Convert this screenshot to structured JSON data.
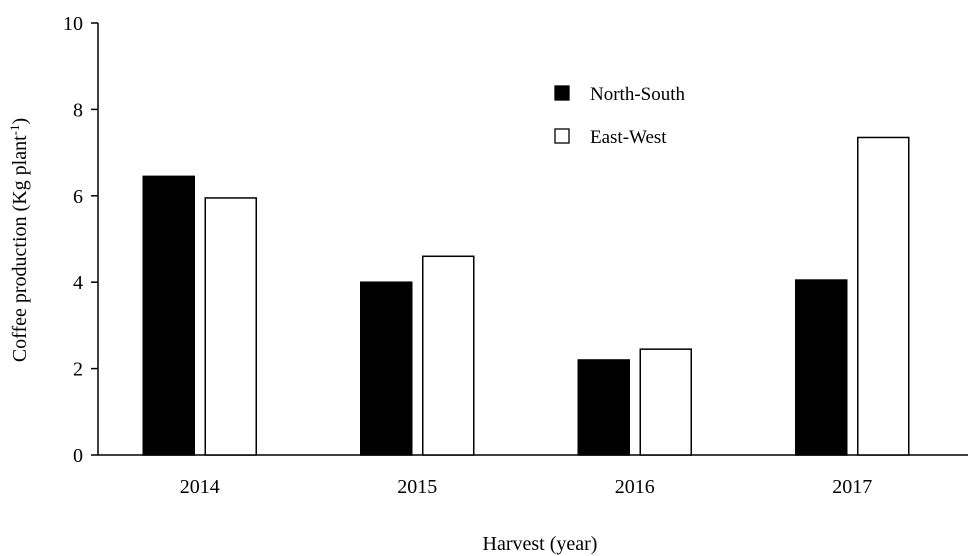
{
  "chart_data": {
    "type": "bar",
    "title": "",
    "xlabel": "Harvest (year)",
    "ylabel": "Coffee production (Kg plant",
    "ylabel_sup": "-1",
    "ylabel_close": ")",
    "categories": [
      "2014",
      "2015",
      "2016",
      "2017"
    ],
    "series": [
      {
        "name": "North-South",
        "values": [
          6.45,
          4.0,
          2.2,
          4.05
        ],
        "color": "#000000",
        "stroke": "#000000"
      },
      {
        "name": "East-West",
        "values": [
          5.95,
          4.6,
          2.45,
          7.35
        ],
        "color": "#ffffff",
        "stroke": "#000000"
      }
    ],
    "ylim": [
      0,
      10
    ],
    "yticks": [
      "0",
      "2",
      "4",
      "6",
      "8",
      "10"
    ],
    "grid": false,
    "legend_position": "top-right"
  }
}
